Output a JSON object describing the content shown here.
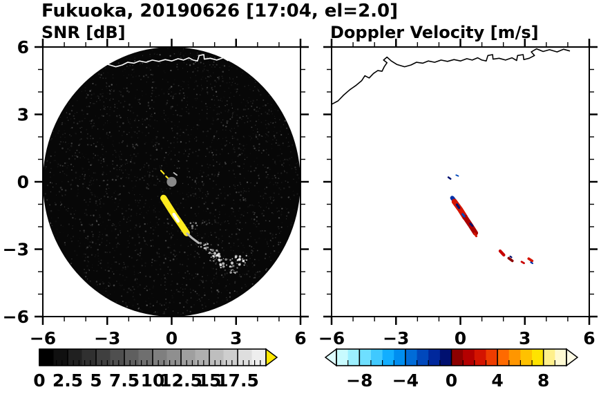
{
  "title": "Fukuoka, 20190626 [17:04, el=2.0]",
  "coastline_points": [
    [
      -6.0,
      3.45
    ],
    [
      -5.7,
      3.6
    ],
    [
      -5.45,
      3.85
    ],
    [
      -5.15,
      4.1
    ],
    [
      -4.85,
      4.3
    ],
    [
      -4.6,
      4.5
    ],
    [
      -4.45,
      4.72
    ],
    [
      -4.25,
      4.62
    ],
    [
      -4.05,
      4.82
    ],
    [
      -3.85,
      4.95
    ],
    [
      -3.65,
      4.92
    ],
    [
      -3.55,
      5.12
    ],
    [
      -3.42,
      5.3
    ],
    [
      -3.58,
      5.42
    ],
    [
      -3.42,
      5.55
    ],
    [
      -3.22,
      5.38
    ],
    [
      -2.95,
      5.22
    ],
    [
      -2.6,
      5.12
    ],
    [
      -2.3,
      5.2
    ],
    [
      -2.05,
      5.32
    ],
    [
      -1.75,
      5.28
    ],
    [
      -1.5,
      5.38
    ],
    [
      -1.2,
      5.32
    ],
    [
      -0.9,
      5.42
    ],
    [
      -0.6,
      5.36
    ],
    [
      -0.3,
      5.44
    ],
    [
      0.0,
      5.38
    ],
    [
      0.3,
      5.48
    ],
    [
      0.55,
      5.42
    ],
    [
      0.8,
      5.52
    ],
    [
      1.0,
      5.42
    ],
    [
      1.2,
      5.38
    ],
    [
      1.28,
      5.62
    ],
    [
      1.5,
      5.66
    ],
    [
      1.52,
      5.46
    ],
    [
      1.8,
      5.5
    ],
    [
      2.1,
      5.42
    ],
    [
      2.4,
      5.52
    ],
    [
      2.62,
      5.4
    ],
    [
      2.66,
      5.62
    ],
    [
      2.92,
      5.66
    ],
    [
      2.95,
      5.44
    ],
    [
      3.2,
      5.5
    ],
    [
      3.45,
      5.62
    ],
    [
      3.3,
      5.78
    ],
    [
      3.55,
      5.92
    ],
    [
      3.85,
      5.8
    ],
    [
      4.15,
      5.88
    ],
    [
      4.5,
      5.78
    ],
    [
      4.8,
      5.9
    ],
    [
      5.1,
      5.82
    ]
  ],
  "chart_data": [
    {
      "type": "heatmap",
      "title": "SNR [dB]",
      "xlabel": "",
      "ylabel": "",
      "xlim": [
        -6,
        6
      ],
      "ylim": [
        -6,
        6
      ],
      "xticks": {
        "major": [
          -6,
          -3,
          0,
          3,
          6
        ],
        "minor_step": 1,
        "labels": [
          "−6",
          "−3",
          "0",
          "3",
          "6"
        ]
      },
      "yticks": {
        "major": [
          6,
          3,
          0,
          -3,
          -6
        ],
        "minor_step": 1,
        "labels": [
          "6",
          "3",
          "0",
          "−3",
          "−6"
        ]
      },
      "show_ytick_labels": true,
      "background": "#ffffff",
      "coastline": {
        "color": "#ffffff",
        "width": 1.6
      },
      "scan_disk": {
        "cx": 0,
        "cy": 0,
        "r": 6,
        "fill": "#070707"
      },
      "noise_speckle": {
        "count": 2600,
        "seed": 7,
        "color_min": 30,
        "color_max": 150,
        "alpha": 0.5
      },
      "radar_site_marker": {
        "x": 0,
        "y": 0,
        "r": 0.23,
        "fill": "#8a8a8a"
      },
      "echoes": [
        {
          "pts": [
            [
              -0.38,
              -0.72
            ],
            [
              -0.14,
              -1.08
            ],
            [
              0.14,
              -1.5
            ],
            [
              0.42,
              -1.88
            ],
            [
              0.7,
              -2.28
            ]
          ],
          "w": 0.3,
          "color": "#ffec1e"
        },
        {
          "pts": [
            [
              0.1,
              -1.45
            ],
            [
              0.3,
              -1.75
            ]
          ],
          "w": 0.14,
          "color": "#ffffff"
        },
        {
          "pts": [
            [
              0.72,
              -2.3
            ],
            [
              0.95,
              -2.5
            ],
            [
              1.25,
              -2.72
            ]
          ],
          "w": 0.1,
          "color": "#b9b9b9"
        },
        {
          "pts": [
            [
              -0.5,
              0.5
            ],
            [
              -0.36,
              0.36
            ]
          ],
          "w": 0.07,
          "color": "#ffe81e"
        },
        {
          "pts": [
            [
              -0.26,
              0.24
            ],
            [
              -0.16,
              0.15
            ]
          ],
          "w": 0.07,
          "color": "#ffe81e"
        },
        {
          "pts": [
            [
              0.1,
              0.4
            ],
            [
              0.24,
              0.3
            ]
          ],
          "w": 0.06,
          "color": "#bdbdbd"
        }
      ],
      "speckle_blobs": [
        {
          "x": 1.5,
          "y": -2.82,
          "rx": 0.28,
          "ry": 0.16,
          "n": 14,
          "color": "#d8d8d8",
          "smax": 1.4
        },
        {
          "x": 2.0,
          "y": -3.28,
          "rx": 0.34,
          "ry": 0.26,
          "n": 26,
          "color": "#efefef",
          "smax": 1.6
        },
        {
          "x": 2.58,
          "y": -3.62,
          "rx": 0.38,
          "ry": 0.2,
          "n": 22,
          "color": "#e2e2e2",
          "smax": 1.6
        },
        {
          "x": 3.22,
          "y": -3.5,
          "rx": 0.3,
          "ry": 0.22,
          "n": 18,
          "color": "#efefef",
          "smax": 1.6
        },
        {
          "x": 2.95,
          "y": -3.95,
          "rx": 0.22,
          "ry": 0.12,
          "n": 9,
          "color": "#cfcfcf",
          "smax": 1.3
        },
        {
          "x": 1.05,
          "y": -2.1,
          "rx": 0.18,
          "ry": 0.3,
          "n": 8,
          "color": "#9f9f9f",
          "smax": 1.2
        }
      ],
      "colorbar": {
        "units": "dB",
        "range": [
          0,
          20
        ],
        "label_values": [
          0,
          2.5,
          5,
          7.5,
          10,
          12.5,
          15,
          17.5
        ],
        "labels": [
          "0",
          "2.5",
          "5",
          "7.5",
          "10",
          "12.5",
          "15",
          "17.5"
        ],
        "minor_step": 0.5,
        "segments": 16,
        "gradient": [
          "#000000",
          "#eeeeee"
        ],
        "arrow_right": "#ffe800"
      }
    },
    {
      "type": "heatmap",
      "title": "Doppler Velocity [m/s]",
      "xlabel": "",
      "ylabel": "",
      "xlim": [
        -6,
        6
      ],
      "ylim": [
        -6,
        6
      ],
      "xticks": {
        "major": [
          -6,
          -3,
          0,
          3,
          6
        ],
        "minor_step": 1,
        "labels": [
          "−6",
          "−3",
          "0",
          "3",
          "6"
        ]
      },
      "yticks": {
        "major": [
          6,
          3,
          0,
          -3,
          -6
        ],
        "minor_step": 1,
        "labels": [
          "6",
          "3",
          "0",
          "−3",
          "−6"
        ]
      },
      "show_ytick_labels": false,
      "background": "#ffffff",
      "coastline": {
        "color": "#000000",
        "width": 1.6
      },
      "echoes": [
        {
          "pts": [
            [
              -0.38,
              -0.72
            ],
            [
              -0.22,
              -0.92
            ]
          ],
          "w": 0.2,
          "color": "#0030a8"
        },
        {
          "pts": [
            [
              -0.28,
              -0.88
            ],
            [
              -0.02,
              -1.22
            ],
            [
              0.22,
              -1.58
            ]
          ],
          "w": 0.26,
          "color": "#d41400"
        },
        {
          "pts": [
            [
              -0.16,
              -1.02
            ],
            [
              -0.06,
              -1.16
            ]
          ],
          "w": 0.11,
          "color": "#001070"
        },
        {
          "pts": [
            [
              0.22,
              -1.58
            ],
            [
              0.46,
              -1.92
            ],
            [
              0.7,
              -2.28
            ]
          ],
          "w": 0.24,
          "color": "#aa0000"
        },
        {
          "pts": [
            [
              0.1,
              -1.44
            ],
            [
              0.18,
              -1.54
            ]
          ],
          "w": 0.1,
          "color": "#0048bc"
        },
        {
          "pts": [
            [
              0.46,
              -1.86
            ],
            [
              0.56,
              -1.96
            ]
          ],
          "w": 0.09,
          "color": "#001070"
        },
        {
          "pts": [
            [
              0.66,
              -2.3
            ],
            [
              0.74,
              -2.42
            ]
          ],
          "w": 0.1,
          "color": "#d41400"
        },
        {
          "pts": [
            [
              1.85,
              -3.08
            ],
            [
              2.02,
              -3.26
            ]
          ],
          "w": 0.14,
          "color": "#c80000"
        },
        {
          "pts": [
            [
              2.25,
              -3.4
            ],
            [
              2.42,
              -3.52
            ]
          ],
          "w": 0.12,
          "color": "#8c0000"
        },
        {
          "pts": [
            [
              2.32,
              -3.32
            ],
            [
              2.38,
              -3.36
            ]
          ],
          "w": 0.07,
          "color": "#001070"
        },
        {
          "pts": [
            [
              2.85,
              -3.56
            ],
            [
              2.96,
              -3.62
            ]
          ],
          "w": 0.09,
          "color": "#c80000"
        },
        {
          "pts": [
            [
              3.18,
              -3.42
            ],
            [
              3.34,
              -3.52
            ]
          ],
          "w": 0.12,
          "color": "#d41400"
        },
        {
          "pts": [
            [
              3.28,
              -3.58
            ],
            [
              3.36,
              -3.63
            ]
          ],
          "w": 0.07,
          "color": "#0030a8"
        },
        {
          "pts": [
            [
              -0.56,
              0.2
            ],
            [
              -0.46,
              0.13
            ]
          ],
          "w": 0.08,
          "color": "#001070"
        },
        {
          "pts": [
            [
              -0.2,
              0.3
            ],
            [
              -0.1,
              0.26
            ]
          ],
          "w": 0.06,
          "color": "#0048bc"
        }
      ],
      "colorbar": {
        "units": "m/s",
        "range": [
          -10,
          10
        ],
        "label_values": [
          -8,
          -4,
          0,
          4,
          8
        ],
        "labels": [
          "−8",
          "−4",
          "0",
          "4",
          "8"
        ],
        "minor_step": 1,
        "colors": [
          "#c8fbff",
          "#9cefff",
          "#6edfff",
          "#40c9ff",
          "#12aeff",
          "#008ef0",
          "#006cd8",
          "#0048bc",
          "#00289c",
          "#001070",
          "#8c0000",
          "#b40000",
          "#d41400",
          "#ee3c00",
          "#ff6a00",
          "#ff9600",
          "#ffc100",
          "#ffe300",
          "#fff08c",
          "#fffad2"
        ],
        "arrow_left": "#dffdff",
        "arrow_right": "#fffce6"
      }
    }
  ]
}
